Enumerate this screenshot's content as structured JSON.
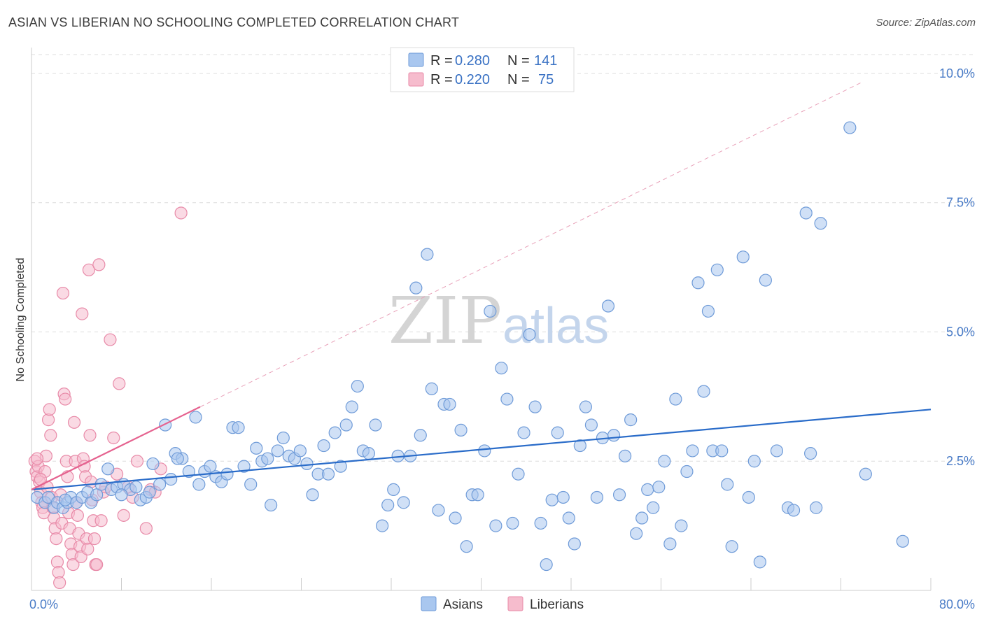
{
  "header": {
    "title": "ASIAN VS LIBERIAN NO SCHOOLING COMPLETED CORRELATION CHART",
    "source": "Source: ZipAtlas.com"
  },
  "legend": {
    "asians": {
      "r_label": "R =",
      "r_value": "0.280",
      "n_label": "N =",
      "n_value": "141"
    },
    "liberians": {
      "r_label": "R =",
      "r_value": "0.220",
      "n_label": "N =",
      "n_value": "75"
    }
  },
  "watermark": {
    "zip": "ZIP",
    "atlas": "atlas"
  },
  "chart_data": {
    "type": "scatter",
    "ylabel": "No Schooling Completed",
    "xlabel": "",
    "xlim": [
      0,
      80
    ],
    "ylim": [
      0,
      10.5
    ],
    "x_tick_labels": [
      "0.0%",
      "80.0%"
    ],
    "y_ticks": [
      2.5,
      5.0,
      7.5,
      10.0
    ],
    "y_tick_labels": [
      "2.5%",
      "5.0%",
      "7.5%",
      "10.0%"
    ],
    "grid": true,
    "legend_position": "top-center",
    "bottom_legend": [
      "Asians",
      "Liberians"
    ],
    "colors": {
      "asians_fill": "#a9c7ef",
      "asians_stroke": "#6f9bd8",
      "asians_line": "#2a6cc9",
      "liberians_fill": "#f6bccd",
      "liberians_stroke": "#e88aa8",
      "liberians_line": "#e5628f"
    },
    "series": [
      {
        "name": "Asians",
        "trend": {
          "x": [
            0,
            80
          ],
          "y": [
            1.95,
            3.5
          ]
        },
        "points": [
          [
            0.5,
            1.8
          ],
          [
            1.2,
            1.7
          ],
          [
            1.5,
            1.8
          ],
          [
            2.0,
            1.6
          ],
          [
            2.3,
            1.7
          ],
          [
            2.8,
            1.6
          ],
          [
            3.2,
            1.7
          ],
          [
            3.5,
            1.8
          ],
          [
            4.0,
            1.7
          ],
          [
            4.5,
            1.8
          ],
          [
            5.0,
            1.9
          ],
          [
            5.3,
            1.7
          ],
          [
            5.8,
            1.85
          ],
          [
            6.2,
            2.05
          ],
          [
            6.8,
            2.35
          ],
          [
            7.1,
            1.95
          ],
          [
            7.6,
            2.0
          ],
          [
            8.2,
            2.05
          ],
          [
            8.8,
            1.95
          ],
          [
            9.3,
            2.0
          ],
          [
            9.7,
            1.75
          ],
          [
            10.2,
            1.8
          ],
          [
            10.5,
            1.9
          ],
          [
            10.8,
            2.45
          ],
          [
            11.4,
            2.05
          ],
          [
            11.9,
            3.2
          ],
          [
            12.4,
            2.15
          ],
          [
            12.8,
            2.65
          ],
          [
            13.4,
            2.55
          ],
          [
            14.0,
            2.3
          ],
          [
            14.6,
            3.35
          ],
          [
            14.9,
            2.05
          ],
          [
            15.4,
            2.3
          ],
          [
            15.9,
            2.4
          ],
          [
            16.4,
            2.2
          ],
          [
            16.9,
            2.1
          ],
          [
            17.4,
            2.25
          ],
          [
            17.9,
            3.15
          ],
          [
            18.4,
            3.15
          ],
          [
            18.9,
            2.4
          ],
          [
            19.5,
            2.05
          ],
          [
            20.0,
            2.75
          ],
          [
            20.5,
            2.5
          ],
          [
            21.0,
            2.55
          ],
          [
            21.3,
            1.65
          ],
          [
            21.9,
            2.7
          ],
          [
            22.4,
            2.95
          ],
          [
            22.9,
            2.6
          ],
          [
            23.4,
            2.55
          ],
          [
            23.9,
            2.7
          ],
          [
            24.5,
            2.45
          ],
          [
            25.0,
            1.85
          ],
          [
            25.5,
            2.25
          ],
          [
            26.0,
            2.8
          ],
          [
            26.4,
            2.25
          ],
          [
            27.0,
            3.05
          ],
          [
            27.5,
            2.4
          ],
          [
            28.0,
            3.2
          ],
          [
            28.5,
            3.55
          ],
          [
            29.0,
            3.95
          ],
          [
            29.5,
            2.7
          ],
          [
            30.0,
            2.65
          ],
          [
            30.6,
            3.2
          ],
          [
            31.2,
            1.25
          ],
          [
            31.7,
            1.65
          ],
          [
            32.2,
            1.95
          ],
          [
            32.6,
            2.6
          ],
          [
            33.1,
            1.7
          ],
          [
            33.7,
            2.6
          ],
          [
            34.2,
            5.85
          ],
          [
            34.6,
            3.0
          ],
          [
            35.2,
            6.5
          ],
          [
            35.6,
            3.9
          ],
          [
            36.2,
            1.55
          ],
          [
            36.7,
            3.6
          ],
          [
            37.2,
            3.6
          ],
          [
            37.7,
            1.4
          ],
          [
            38.2,
            3.1
          ],
          [
            38.7,
            0.85
          ],
          [
            39.2,
            1.85
          ],
          [
            39.7,
            1.85
          ],
          [
            40.3,
            2.7
          ],
          [
            40.8,
            5.4
          ],
          [
            41.3,
            1.25
          ],
          [
            41.8,
            4.3
          ],
          [
            42.3,
            3.7
          ],
          [
            42.8,
            1.3
          ],
          [
            43.3,
            2.25
          ],
          [
            43.8,
            3.05
          ],
          [
            44.3,
            4.95
          ],
          [
            44.8,
            3.55
          ],
          [
            45.3,
            1.3
          ],
          [
            45.8,
            0.5
          ],
          [
            46.3,
            1.75
          ],
          [
            46.8,
            3.05
          ],
          [
            47.3,
            1.8
          ],
          [
            47.8,
            1.4
          ],
          [
            48.3,
            0.9
          ],
          [
            48.8,
            2.8
          ],
          [
            49.3,
            3.55
          ],
          [
            49.8,
            3.2
          ],
          [
            50.3,
            1.8
          ],
          [
            50.8,
            2.95
          ],
          [
            51.3,
            5.5
          ],
          [
            51.8,
            3.0
          ],
          [
            52.3,
            1.85
          ],
          [
            52.8,
            2.6
          ],
          [
            53.3,
            3.3
          ],
          [
            53.8,
            1.1
          ],
          [
            54.3,
            1.4
          ],
          [
            54.8,
            1.95
          ],
          [
            55.3,
            1.6
          ],
          [
            55.8,
            2.0
          ],
          [
            56.3,
            2.5
          ],
          [
            56.8,
            0.9
          ],
          [
            57.3,
            3.7
          ],
          [
            57.8,
            1.25
          ],
          [
            58.3,
            2.3
          ],
          [
            58.8,
            2.7
          ],
          [
            59.3,
            5.95
          ],
          [
            59.8,
            3.85
          ],
          [
            60.2,
            5.4
          ],
          [
            60.6,
            2.7
          ],
          [
            61.0,
            6.2
          ],
          [
            61.4,
            2.7
          ],
          [
            61.9,
            2.05
          ],
          [
            62.3,
            0.85
          ],
          [
            63.3,
            6.45
          ],
          [
            63.8,
            1.8
          ],
          [
            64.3,
            2.5
          ],
          [
            64.8,
            0.55
          ],
          [
            65.3,
            6.0
          ],
          [
            66.3,
            2.7
          ],
          [
            67.3,
            1.6
          ],
          [
            67.8,
            1.55
          ],
          [
            68.9,
            7.3
          ],
          [
            69.3,
            2.65
          ],
          [
            69.8,
            1.6
          ],
          [
            70.2,
            7.1
          ],
          [
            72.8,
            8.95
          ],
          [
            74.2,
            2.25
          ],
          [
            77.5,
            0.95
          ],
          [
            3.0,
            1.75
          ],
          [
            8.0,
            1.85
          ],
          [
            13.0,
            2.55
          ]
        ]
      },
      {
        "name": "Liberians",
        "trend": {
          "x": [
            0,
            15
          ],
          "y": [
            1.95,
            3.55
          ]
        },
        "points": [
          [
            0.3,
            2.5
          ],
          [
            0.4,
            2.3
          ],
          [
            0.5,
            2.2
          ],
          [
            0.6,
            2.4
          ],
          [
            0.7,
            2.1
          ],
          [
            0.8,
            1.9
          ],
          [
            0.9,
            1.7
          ],
          [
            1.0,
            1.6
          ],
          [
            1.1,
            1.5
          ],
          [
            1.2,
            2.3
          ],
          [
            1.3,
            2.6
          ],
          [
            1.4,
            2.0
          ],
          [
            1.5,
            3.3
          ],
          [
            1.6,
            3.5
          ],
          [
            1.7,
            3.0
          ],
          [
            1.8,
            1.8
          ],
          [
            1.9,
            1.6
          ],
          [
            2.0,
            1.4
          ],
          [
            2.1,
            1.2
          ],
          [
            2.2,
            1.0
          ],
          [
            2.3,
            0.55
          ],
          [
            2.4,
            0.35
          ],
          [
            2.5,
            0.15
          ],
          [
            2.6,
            1.85
          ],
          [
            2.7,
            1.3
          ],
          [
            2.8,
            5.75
          ],
          [
            2.9,
            3.8
          ],
          [
            3.0,
            3.7
          ],
          [
            3.1,
            2.5
          ],
          [
            3.2,
            2.2
          ],
          [
            3.3,
            1.5
          ],
          [
            3.4,
            1.2
          ],
          [
            3.5,
            0.9
          ],
          [
            3.6,
            0.7
          ],
          [
            3.7,
            0.5
          ],
          [
            3.8,
            3.25
          ],
          [
            3.9,
            2.5
          ],
          [
            4.0,
            1.7
          ],
          [
            4.1,
            1.45
          ],
          [
            4.2,
            1.1
          ],
          [
            4.3,
            0.85
          ],
          [
            4.4,
            0.65
          ],
          [
            4.5,
            5.35
          ],
          [
            4.6,
            2.55
          ],
          [
            4.7,
            2.4
          ],
          [
            4.8,
            2.2
          ],
          [
            4.9,
            1.0
          ],
          [
            5.0,
            0.8
          ],
          [
            5.1,
            6.2
          ],
          [
            5.2,
            3.0
          ],
          [
            5.3,
            2.1
          ],
          [
            5.4,
            1.75
          ],
          [
            5.5,
            1.35
          ],
          [
            5.6,
            1.0
          ],
          [
            5.7,
            0.5
          ],
          [
            5.8,
            0.5
          ],
          [
            6.0,
            6.3
          ],
          [
            6.2,
            1.35
          ],
          [
            6.4,
            1.9
          ],
          [
            6.6,
            2.0
          ],
          [
            7.0,
            4.85
          ],
          [
            7.3,
            2.95
          ],
          [
            7.6,
            2.25
          ],
          [
            7.8,
            4.0
          ],
          [
            8.2,
            1.45
          ],
          [
            8.6,
            2.0
          ],
          [
            9.0,
            1.8
          ],
          [
            9.4,
            2.5
          ],
          [
            10.2,
            1.2
          ],
          [
            10.6,
            1.95
          ],
          [
            11.0,
            1.9
          ],
          [
            11.5,
            2.35
          ],
          [
            13.3,
            7.3
          ],
          [
            0.5,
            2.55
          ],
          [
            0.8,
            2.15
          ]
        ]
      }
    ]
  }
}
